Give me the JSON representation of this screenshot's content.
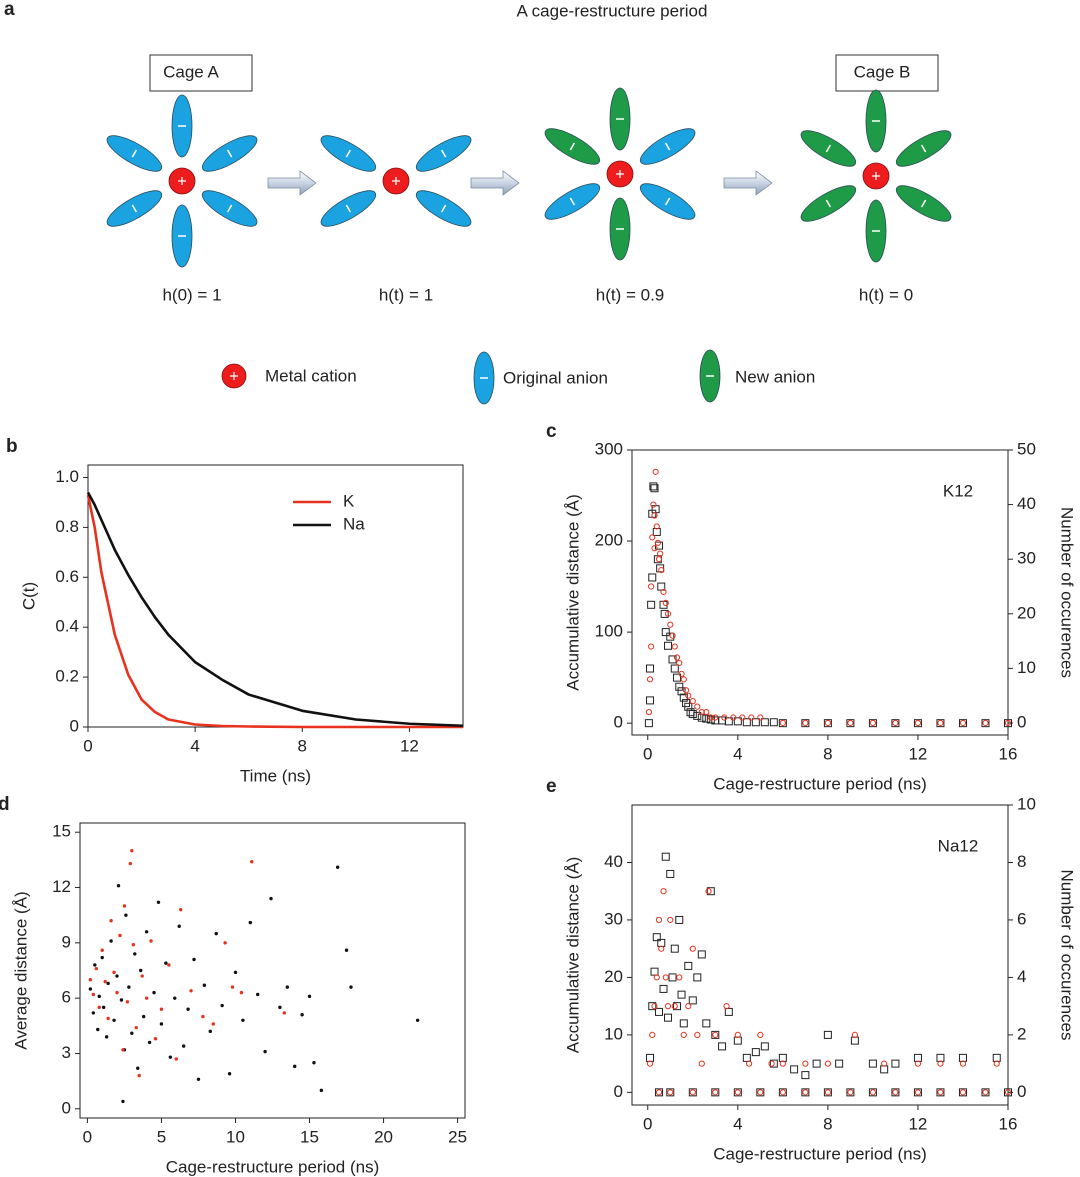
{
  "panel_a": {
    "label": "a",
    "title": "A cage-restructure period",
    "cage_a": "Cage A",
    "cage_b": "Cage B",
    "states": [
      "h(0) = 1",
      "h(t) = 1",
      "h(t) = 0.9",
      "h(t) = 0"
    ],
    "legend": [
      "Metal cation",
      "Original anion",
      "New anion"
    ]
  },
  "chart_data": [
    {
      "type": "line",
      "panel": "b",
      "xlabel": "Time (ns)",
      "ylabel": "C(t)",
      "x": [
        0,
        0.25,
        0.5,
        1,
        1.5,
        2,
        2.5,
        3,
        4,
        5,
        6,
        8,
        10,
        12,
        14
      ],
      "series": [
        {
          "name": "K",
          "color": "#e8321e",
          "values": [
            0.93,
            0.8,
            0.62,
            0.37,
            0.21,
            0.11,
            0.06,
            0.03,
            0.01,
            0.004,
            0.002,
            0,
            0,
            0,
            0
          ]
        },
        {
          "name": "Na",
          "color": "#111111",
          "values": [
            0.94,
            0.89,
            0.83,
            0.71,
            0.61,
            0.52,
            0.44,
            0.37,
            0.26,
            0.19,
            0.13,
            0.065,
            0.03,
            0.013,
            0.005
          ]
        }
      ],
      "xlim": [
        0,
        14
      ],
      "xticks": [
        0,
        4,
        8,
        12
      ],
      "ylim": [
        0,
        1.05
      ],
      "yticks": [
        0,
        0.2,
        0.4,
        0.6,
        0.8,
        {
          "value": 1,
          "label": "1.0"
        }
      ],
      "legend": "upper right"
    },
    {
      "type": "scatter",
      "panel": "c",
      "xlabel": "Cage-restructure period (ns)",
      "ylabel": "Accumulative distance (Å)",
      "y2label": "Number of occurences",
      "annotation": "K12",
      "series": [
        {
          "color": "#222222",
          "marker": "square",
          "x": [
            0.05,
            0.1,
            0.15,
            0.2,
            0.25,
            0.3,
            0.35,
            0.4,
            0.45,
            0.5,
            0.55,
            0.6,
            0.7,
            0.75,
            0.8,
            0.9,
            1.0,
            1.1,
            1.2,
            1.3,
            1.4,
            1.5,
            1.6,
            1.7,
            1.8,
            1.9,
            2.0,
            2.2,
            2.4,
            2.6,
            2.8,
            3.0,
            3.3,
            3.6,
            4.0,
            4.4,
            4.8,
            5.2,
            5.6,
            0.1,
            0.2,
            6,
            7,
            8,
            9,
            10,
            11,
            12,
            13,
            14,
            15,
            16
          ],
          "values": [
            0,
            25,
            130,
            230,
            260,
            258,
            235,
            210,
            180,
            195,
            170,
            150,
            130,
            120,
            100,
            85,
            95,
            70,
            60,
            50,
            40,
            35,
            28,
            22,
            18,
            12,
            10,
            8,
            6,
            5,
            4,
            3,
            3,
            2,
            2,
            1,
            1,
            1,
            1,
            60,
            160,
            0,
            0,
            0,
            0,
            0,
            0,
            0,
            0,
            0,
            0,
            0
          ]
        },
        {
          "color": "#e8321e",
          "marker": "circle",
          "axis": "y2",
          "x": [
            0.05,
            0.1,
            0.15,
            0.2,
            0.25,
            0.3,
            0.35,
            0.4,
            0.45,
            0.5,
            0.55,
            0.6,
            0.7,
            0.8,
            0.9,
            1.0,
            1.1,
            1.2,
            1.3,
            1.4,
            1.5,
            1.6,
            1.7,
            1.8,
            2.0,
            2.2,
            2.4,
            2.6,
            2.8,
            3.0,
            3.4,
            3.8,
            4.2,
            4.6,
            5.0,
            0.15,
            0.3,
            6,
            7,
            8,
            9,
            10,
            11,
            12,
            13,
            14,
            15,
            16
          ],
          "values": [
            2,
            8,
            25,
            34,
            40,
            38,
            46,
            36,
            33,
            30,
            31,
            28,
            24,
            22,
            20,
            18,
            16,
            14,
            12,
            11,
            9,
            8,
            6,
            5,
            4,
            3,
            2,
            2,
            1,
            1,
            1,
            1,
            1,
            1,
            1,
            14,
            32,
            0,
            0,
            0,
            0,
            0,
            0,
            0,
            0,
            0,
            0,
            0
          ]
        }
      ],
      "xlim": [
        -0.7,
        16
      ],
      "xticks": [
        0,
        4,
        8,
        12,
        16
      ],
      "ylim": [
        -13,
        300
      ],
      "yticks": [
        0,
        100,
        200,
        300
      ],
      "y2lim": [
        -2.2,
        50
      ],
      "y2ticks": [
        0,
        10,
        20,
        30,
        40,
        50
      ]
    },
    {
      "type": "scatter",
      "panel": "d",
      "xlabel": "Cage-restructure period (ns)",
      "ylabel": "Average distance (Å)",
      "series": [
        {
          "color": "#111111",
          "marker": "dot",
          "x": [
            0.2,
            0.4,
            0.5,
            0.7,
            0.8,
            1.0,
            1.1,
            1.3,
            1.4,
            1.6,
            1.8,
            2.0,
            2.1,
            2.3,
            2.5,
            2.6,
            2.8,
            3.0,
            3.2,
            3.4,
            3.6,
            3.8,
            4.0,
            4.2,
            4.5,
            4.8,
            5.0,
            5.3,
            5.6,
            5.9,
            6.2,
            6.5,
            6.8,
            7.2,
            7.5,
            7.9,
            8.3,
            8.7,
            9.1,
            9.6,
            10.0,
            10.5,
            11.0,
            11.5,
            12.0,
            12.4,
            13.0,
            13.5,
            14.0,
            14.5,
            15.0,
            15.3,
            15.8,
            16.9,
            17.5,
            17.8,
            22.3,
            2.4
          ],
          "values": [
            6.5,
            5.2,
            7.8,
            4.3,
            6.1,
            8.2,
            5.5,
            3.9,
            6.8,
            9.1,
            4.8,
            7.2,
            12.1,
            5.9,
            3.2,
            10.5,
            6.6,
            4.1,
            8.4,
            2.2,
            7.5,
            5.0,
            9.6,
            3.6,
            6.3,
            11.2,
            4.6,
            7.9,
            2.8,
            6.0,
            9.9,
            3.4,
            5.4,
            8.1,
            1.6,
            6.7,
            4.2,
            9.5,
            5.6,
            1.9,
            7.4,
            4.8,
            10.1,
            6.2,
            3.1,
            11.4,
            5.5,
            6.6,
            2.3,
            5.1,
            6.1,
            2.5,
            1.0,
            13.1,
            8.6,
            6.6,
            4.8,
            0.4
          ]
        },
        {
          "color": "#e8321e",
          "marker": "dot",
          "x": [
            0.2,
            0.4,
            0.6,
            0.8,
            1.0,
            1.2,
            1.4,
            1.6,
            1.8,
            2.0,
            2.2,
            2.4,
            2.5,
            2.7,
            2.9,
            3.0,
            3.1,
            3.3,
            3.5,
            3.7,
            4.0,
            4.3,
            4.6,
            5.0,
            5.5,
            6.0,
            6.3,
            7.0,
            7.8,
            8.5,
            9.3,
            9.8,
            10.4,
            11.1,
            13.3
          ],
          "values": [
            7.0,
            6.2,
            7.6,
            5.5,
            8.6,
            6.9,
            4.9,
            10.2,
            7.4,
            6.3,
            9.4,
            3.2,
            11.0,
            5.8,
            13.3,
            14.0,
            8.9,
            4.4,
            1.8,
            7.2,
            6.0,
            9.1,
            3.8,
            5.4,
            7.8,
            2.7,
            10.8,
            6.4,
            5.0,
            4.6,
            9.0,
            6.6,
            6.3,
            13.4,
            5.2
          ]
        }
      ],
      "xlim": [
        -0.5,
        25.5
      ],
      "xticks": [
        0,
        5,
        10,
        15,
        20,
        25
      ],
      "ylim": [
        -0.5,
        15.5
      ],
      "yticks": [
        0,
        3,
        6,
        9,
        12,
        15
      ]
    },
    {
      "type": "scatter",
      "panel": "e",
      "xlabel": "Cage-restructure period (ns)",
      "ylabel": "Accumulative distance (Å)",
      "y2label": "Number of occurences",
      "annotation": "Na12",
      "series": [
        {
          "color": "#222222",
          "marker": "square",
          "x": [
            0.1,
            0.2,
            0.3,
            0.4,
            0.5,
            0.6,
            0.7,
            0.8,
            0.9,
            1.0,
            1.1,
            1.2,
            1.3,
            1.4,
            1.5,
            1.6,
            1.8,
            2.0,
            2.2,
            2.4,
            2.6,
            2.8,
            3.0,
            3.3,
            3.6,
            4.0,
            4.4,
            4.8,
            5.2,
            5.6,
            6.0,
            6.5,
            7.0,
            7.5,
            8.0,
            8.5,
            9.2,
            10.0,
            10.5,
            11.0,
            12.0,
            13.0,
            14.0,
            15.5,
            0.5,
            1,
            2,
            3,
            4,
            5,
            6,
            7,
            8,
            9,
            10,
            11,
            12,
            13,
            14,
            15,
            16
          ],
          "values": [
            6,
            15,
            21,
            27,
            14,
            26,
            18,
            41,
            13,
            38,
            20,
            25,
            15,
            30,
            17,
            12,
            22,
            16,
            20,
            24,
            12,
            35,
            10,
            8,
            14,
            9,
            6,
            7,
            8,
            5,
            6,
            4,
            3,
            5,
            10,
            5,
            9,
            5,
            4,
            5,
            6,
            6,
            6,
            6,
            0,
            0,
            0,
            0,
            0,
            0,
            0,
            0,
            0,
            0,
            0,
            0,
            0,
            0,
            0,
            0,
            0
          ]
        },
        {
          "color": "#e8321e",
          "marker": "circle",
          "axis": "y2",
          "x": [
            0.1,
            0.2,
            0.3,
            0.4,
            0.5,
            0.6,
            0.7,
            0.8,
            0.9,
            1.0,
            1.2,
            1.4,
            1.6,
            1.8,
            2.0,
            2.2,
            2.4,
            2.7,
            3.0,
            3.5,
            4.0,
            4.5,
            5.0,
            5.5,
            6.0,
            7.0,
            8.0,
            9.2,
            10.5,
            12.0,
            13.0,
            14.0,
            15.5,
            0.5,
            1,
            2,
            3,
            4,
            5,
            6,
            7,
            8,
            9,
            10,
            11,
            12,
            13,
            14,
            15,
            16
          ],
          "values": [
            1,
            2,
            3,
            4,
            6,
            5,
            7,
            4,
            3,
            6,
            3,
            4,
            2,
            3,
            5,
            2,
            1,
            7,
            2,
            3,
            2,
            1,
            2,
            1,
            1,
            1,
            1,
            2,
            1,
            1,
            1,
            1,
            1,
            0,
            0,
            0,
            0,
            0,
            0,
            0,
            0,
            0,
            0,
            0,
            0,
            0,
            0,
            0,
            0,
            0
          ]
        }
      ],
      "xlim": [
        -0.7,
        16
      ],
      "xticks": [
        0,
        4,
        8,
        12,
        16
      ],
      "ylim": [
        -2.2,
        50
      ],
      "yticks": [
        0,
        10,
        20,
        30,
        40
      ],
      "y2lim": [
        -0.44,
        10
      ],
      "y2ticks": [
        0,
        2,
        4,
        6,
        8,
        10
      ]
    }
  ]
}
